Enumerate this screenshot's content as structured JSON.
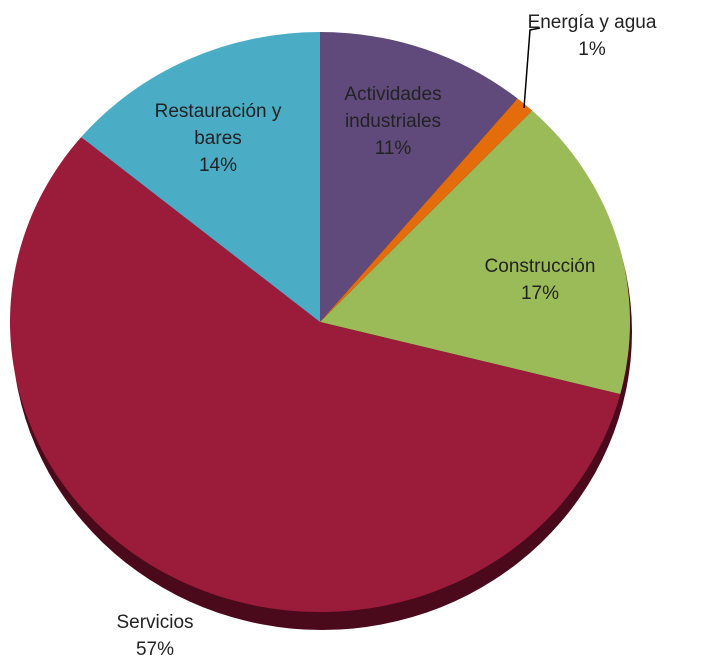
{
  "chart_data": {
    "type": "pie",
    "categories": [
      "Actividades industriales",
      "Energía y agua",
      "Construcción",
      "Servicios",
      "Restauración y bares"
    ],
    "values": [
      11,
      1,
      17,
      57,
      14
    ],
    "value_labels": [
      "11%",
      "1%",
      "17%",
      "57%",
      "14%"
    ],
    "colors": [
      "#604a7b",
      "#e46c0a",
      "#9bbb59",
      "#9b1b3a",
      "#4bacc6"
    ]
  }
}
